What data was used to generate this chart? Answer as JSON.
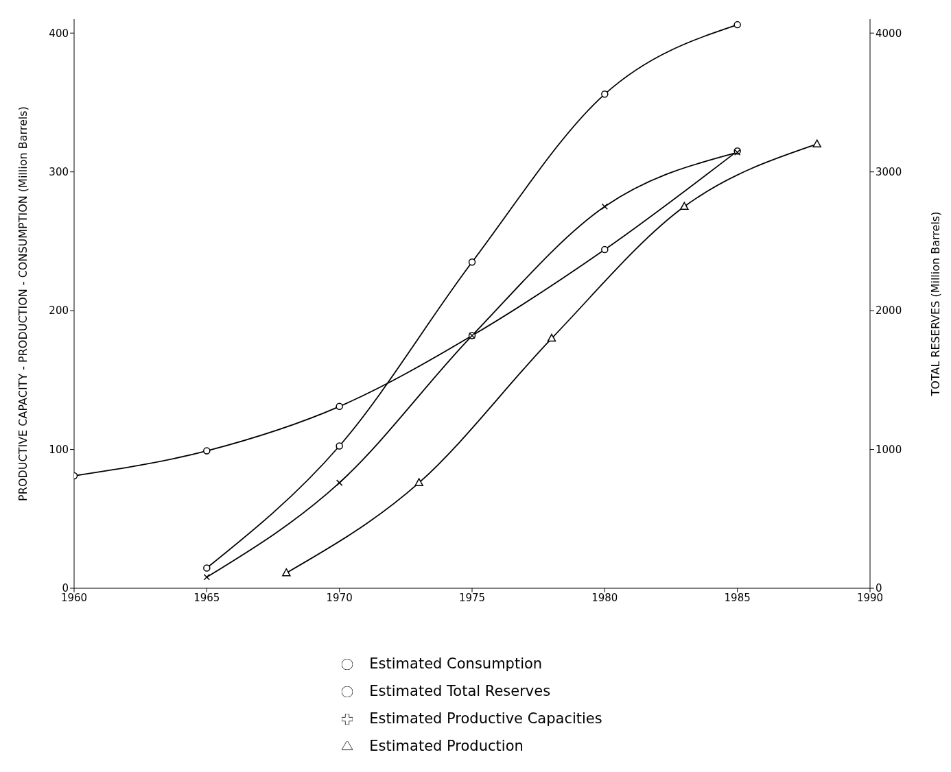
{
  "chart_data": {
    "type": "line",
    "xlabel": null,
    "ylabel": "PRODUCTIVE CAPACITY - PRODUCTION - CONSUMPTION  (Million Barrels)",
    "y2label": "TOTAL RESERVES   (Million Barrels)",
    "xlim": [
      1960,
      1990
    ],
    "xticks": [
      1960,
      1965,
      1970,
      1975,
      1980,
      1985,
      1990
    ],
    "ylim": [
      0,
      410
    ],
    "yticks": [
      0,
      100,
      200,
      300,
      400
    ],
    "y2lim": [
      0,
      4100
    ],
    "y2ticks": [
      0,
      1000,
      2000,
      3000,
      4000
    ],
    "legend": "bottom",
    "series": [
      {
        "name": "Estimated Consumption",
        "color": "#000000",
        "marker": "circle",
        "x": [
          1960,
          1965,
          1970,
          1975,
          1980,
          1985
        ],
        "values": [
          81,
          99,
          131,
          182,
          244,
          315
        ]
      },
      {
        "name": "Estimated Total Reserves",
        "color": "#000000",
        "marker": "circle",
        "axis": "y2",
        "x": [
          1965,
          1970,
          1975,
          1980,
          1985
        ],
        "values": [
          146,
          1025,
          2350,
          3560,
          4060
        ]
      },
      {
        "name": "Estimated Productive Capacities",
        "color": "#000000",
        "marker": "cross",
        "x": [
          1965,
          1970,
          1975,
          1980,
          1985
        ],
        "values": [
          8,
          76,
          182,
          275,
          314
        ]
      },
      {
        "name": "Estimated Production",
        "color": "#000000",
        "marker": "triangle",
        "x": [
          1968,
          1973,
          1978,
          1983,
          1988
        ],
        "values": [
          11,
          76,
          180,
          275,
          320
        ]
      }
    ]
  }
}
